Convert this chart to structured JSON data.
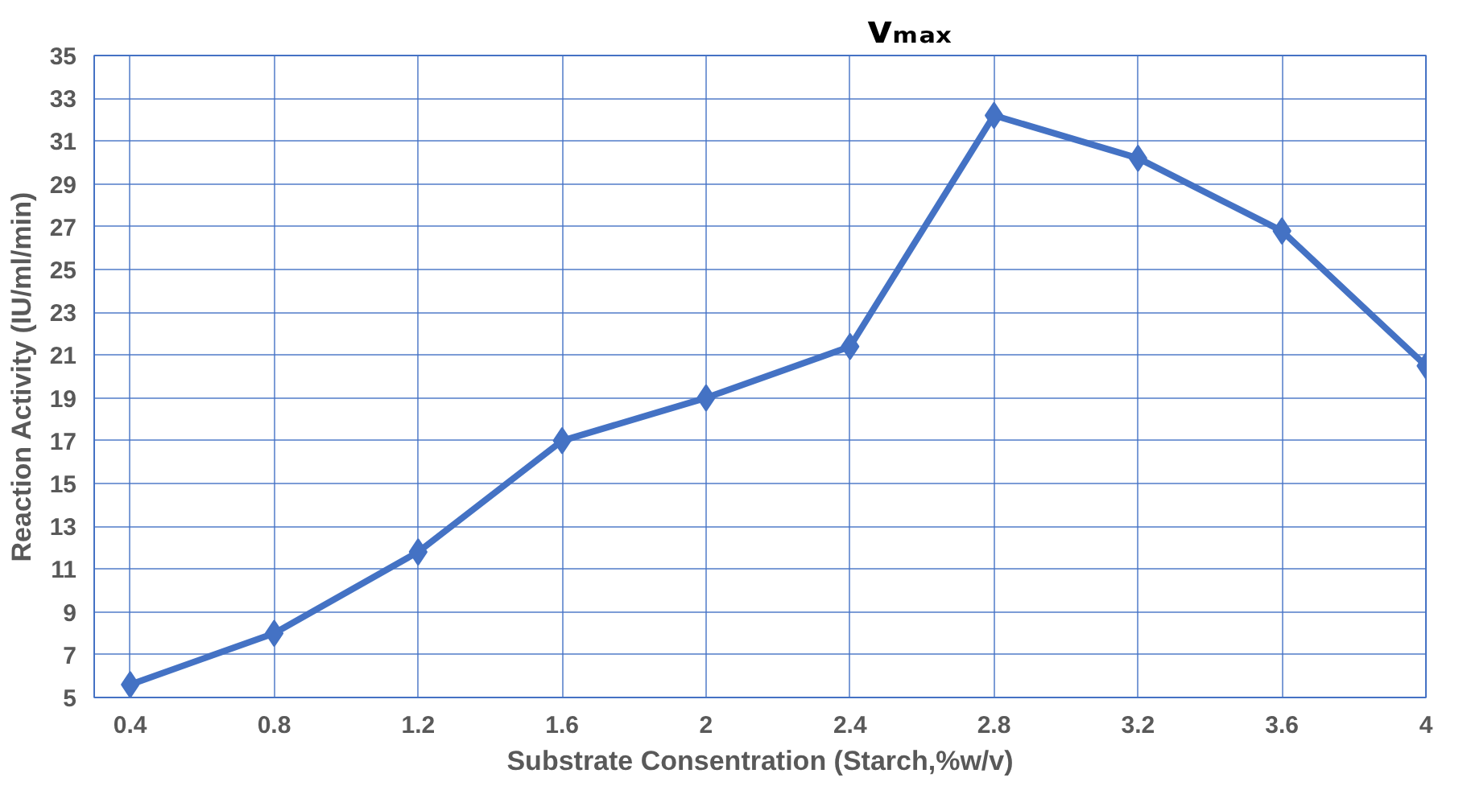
{
  "chart_data": {
    "type": "line",
    "xlabel": "Substrate Consentration (Starch,%w/v)",
    "ylabel": "Reaction Activity (IU/ml/min)",
    "x": [
      0.4,
      0.8,
      1.2,
      1.6,
      2,
      2.4,
      2.8,
      3.2,
      3.6,
      4
    ],
    "series": [
      {
        "color": "#4472c4",
        "values": [
          5.6,
          8.0,
          11.8,
          17.0,
          19.0,
          21.4,
          32.2,
          30.2,
          26.8,
          20.5
        ]
      }
    ],
    "xlim": [
      0.3,
      4
    ],
    "xticks": [
      0.4,
      0.8,
      1.2,
      1.6,
      2,
      2.4,
      2.8,
      3.2,
      3.6,
      4
    ],
    "ylim": [
      5,
      35
    ],
    "yticks": [
      5,
      7,
      9,
      11,
      13,
      15,
      17,
      19,
      21,
      23,
      25,
      27,
      29,
      31,
      33,
      35
    ],
    "grid": true,
    "marker": "diamond",
    "line_style": "solid",
    "annotations": [
      "vₘₐₓ"
    ]
  }
}
